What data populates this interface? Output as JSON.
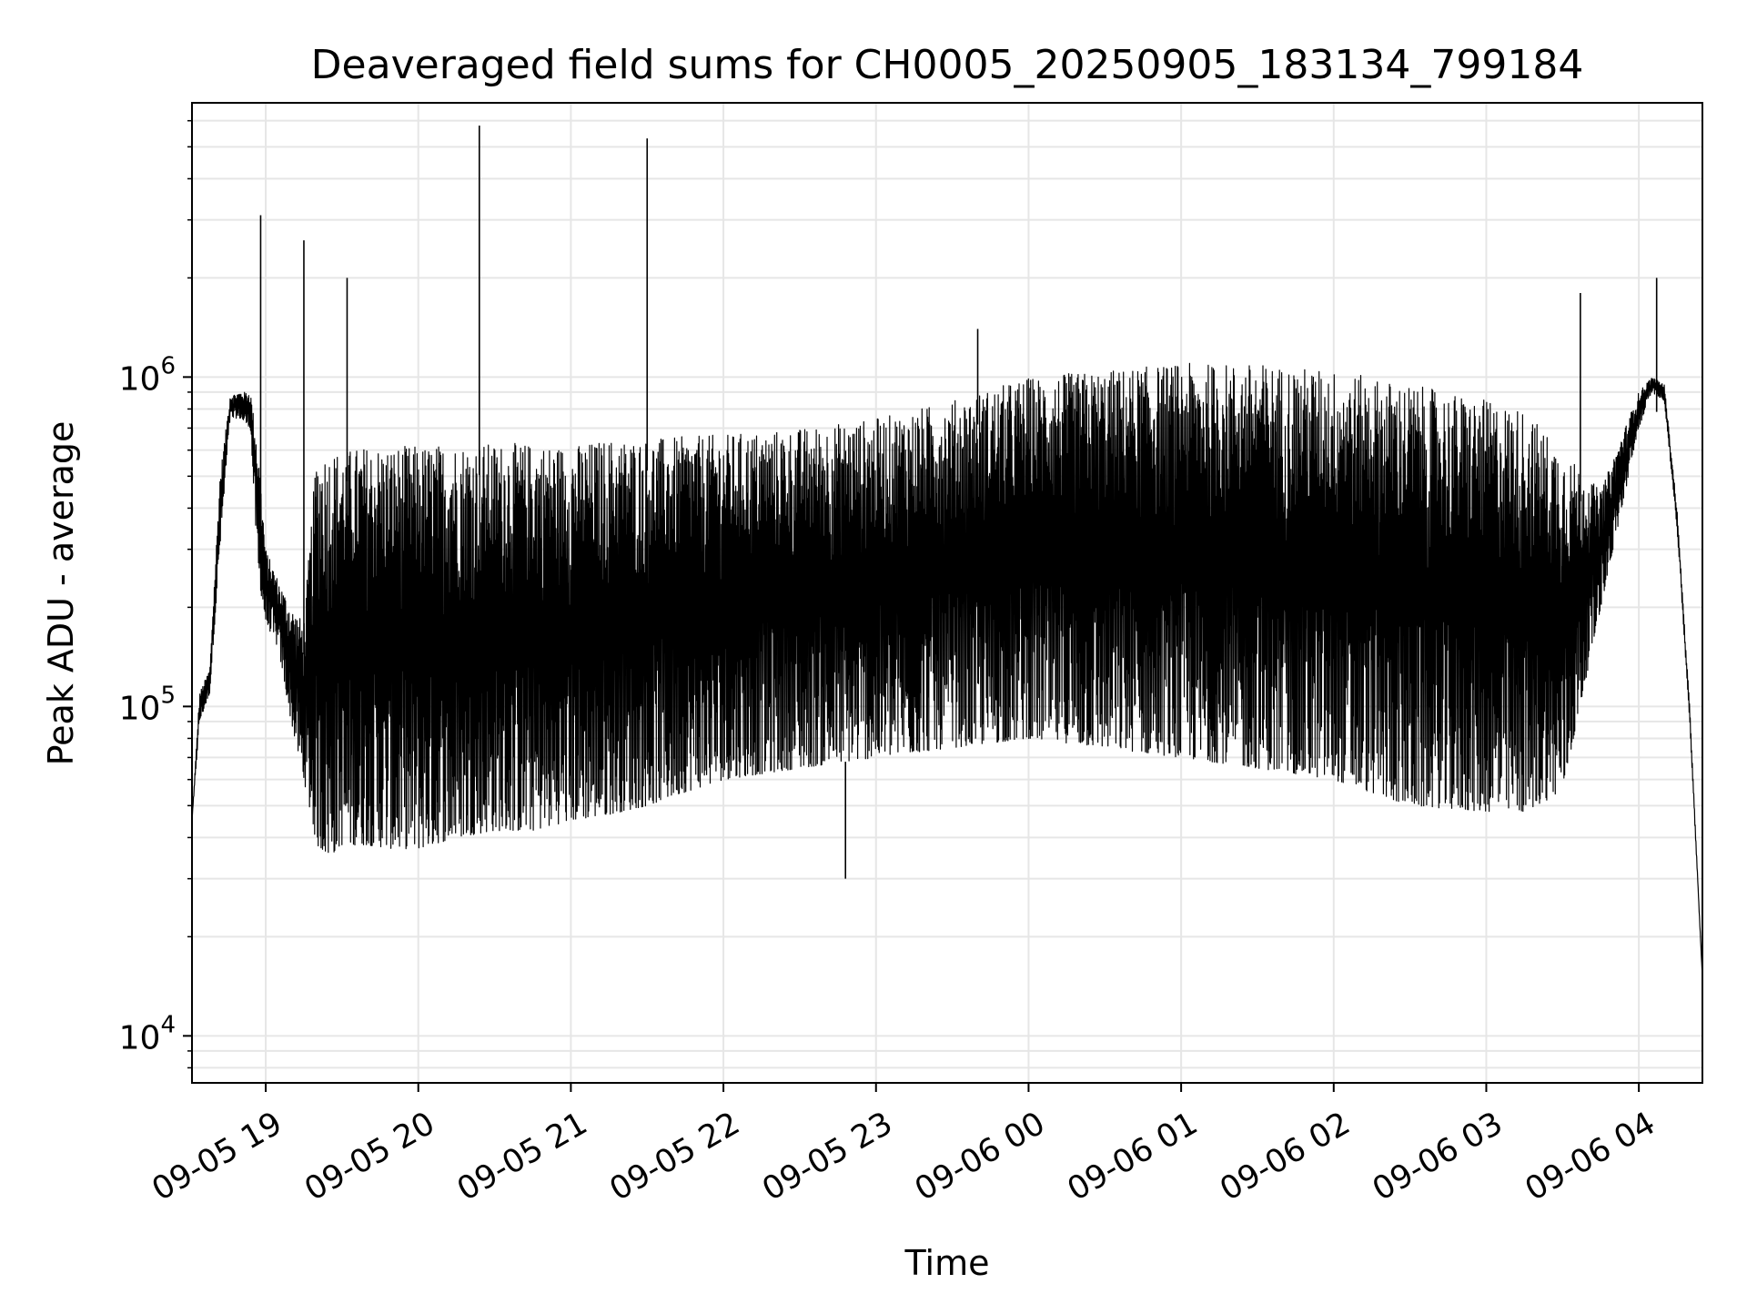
{
  "chart_data": {
    "type": "line",
    "title": "Deaveraged field sums for CH0005_20250905_183134_799184",
    "xlabel": "Time",
    "ylabel": "Peak ADU - average",
    "x_scale": "time",
    "y_scale": "log",
    "grid": true,
    "grid_minor": true,
    "xlim": [
      "2025-09-05 18:31",
      "2025-09-06 04:25"
    ],
    "ylim": [
      7200,
      6800000
    ],
    "x_ticks": [
      "09-05 19",
      "09-05 20",
      "09-05 21",
      "09-05 22",
      "09-05 23",
      "09-06 00",
      "09-06 01",
      "09-06 02",
      "09-06 03",
      "09-06 04"
    ],
    "y_ticks": [
      {
        "value": 10000,
        "base": "10",
        "exp": "4"
      },
      {
        "value": 100000,
        "base": "10",
        "exp": "5"
      },
      {
        "value": 1000000,
        "base": "10",
        "exp": "6"
      }
    ],
    "line_color": "#000000",
    "series": [
      {
        "x": [
          "09-05 18:31",
          "09-05 18:34",
          "09-05 18:38",
          "09-05 18:42",
          "09-05 18:46",
          "09-05 18:50",
          "09-05 18:54",
          "09-05 18:57",
          "09-05 19:00",
          "09-05 19:05",
          "09-05 19:10",
          "09-05 19:15",
          "09-05 19:20",
          "09-05 19:25",
          "09-05 19:30",
          "09-05 19:40",
          "09-05 19:50",
          "09-05 20:00",
          "09-05 20:15",
          "09-05 20:30",
          "09-05 20:45",
          "09-05 21:00",
          "09-05 21:15",
          "09-05 21:30",
          "09-05 21:45",
          "09-05 22:00",
          "09-05 22:30",
          "09-05 23:00",
          "09-05 23:30",
          "09-06 00:00",
          "09-06 00:30",
          "09-06 01:00",
          "09-06 01:30",
          "09-06 02:00",
          "09-06 02:30",
          "09-06 03:00",
          "09-06 03:15",
          "09-06 03:30",
          "09-06 03:45",
          "09-06 04:00",
          "09-06 04:05",
          "09-06 04:10",
          "09-06 04:15",
          "09-06 04:20",
          "09-06 04:25"
        ],
        "upper": [
          45000,
          110000,
          130000,
          500000,
          880000,
          900000,
          900000,
          600000,
          300000,
          240000,
          200000,
          180000,
          600000,
          600000,
          600000,
          620000,
          620000,
          620000,
          630000,
          630000,
          630000,
          620000,
          650000,
          650000,
          660000,
          670000,
          700000,
          750000,
          850000,
          1000000,
          1050000,
          1100000,
          1100000,
          1050000,
          950000,
          850000,
          800000,
          600000,
          450000,
          900000,
          1000000,
          950000,
          400000,
          100000,
          15000
        ],
        "lower": [
          45000,
          90000,
          110000,
          300000,
          750000,
          750000,
          700000,
          250000,
          180000,
          150000,
          90000,
          60000,
          38000,
          35000,
          38000,
          38000,
          37000,
          37000,
          40000,
          42000,
          42000,
          45000,
          47000,
          50000,
          55000,
          60000,
          65000,
          70000,
          75000,
          80000,
          75000,
          70000,
          65000,
          60000,
          50000,
          48000,
          48000,
          55000,
          200000,
          700000,
          900000,
          850000,
          350000,
          90000,
          15000
        ],
        "spikes": [
          {
            "x": "09-05 18:58",
            "y": 3100000
          },
          {
            "x": "09-05 19:15",
            "y": 2600000
          },
          {
            "x": "09-05 19:32",
            "y": 2000000
          },
          {
            "x": "09-05 20:24",
            "y": 5800000
          },
          {
            "x": "09-05 21:30",
            "y": 5300000
          },
          {
            "x": "09-05 22:48",
            "y": 30000
          },
          {
            "x": "09-05 23:40",
            "y": 1400000
          },
          {
            "x": "09-06 03:37",
            "y": 1800000
          },
          {
            "x": "09-06 04:07",
            "y": 2000000
          }
        ]
      }
    ]
  }
}
